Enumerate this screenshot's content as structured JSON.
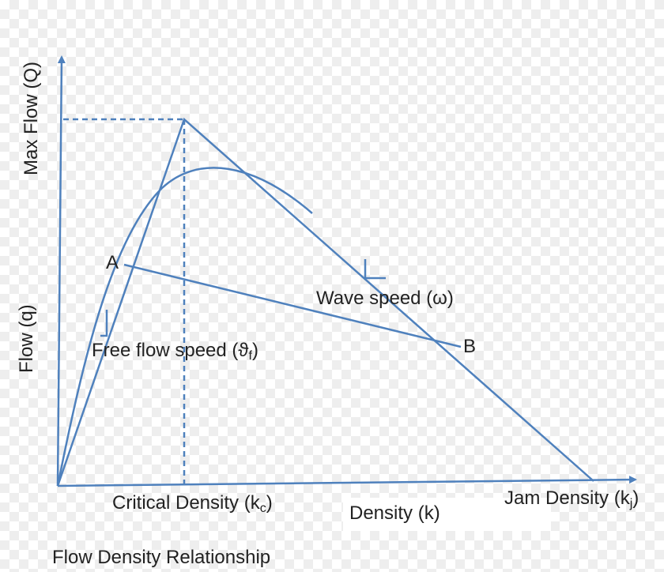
{
  "labels": {
    "y_axis_max": "Max Flow (Q)",
    "y_axis": "Flow (q)",
    "point_a": "A",
    "point_b": "B",
    "wave_speed": "Wave speed (ω)",
    "free_flow_text": "Free flow speed (ϑ",
    "free_flow_sub": "f",
    "free_flow_close": ")",
    "critical_text": "Critical Density (k",
    "critical_sub": "c",
    "critical_close": ")",
    "density": "Density (k)",
    "jam_text": "Jam Density (k",
    "jam_sub": "j",
    "jam_close": ")",
    "caption": "Flow Density Relationship"
  },
  "colors": {
    "line": "#4f81bd",
    "text": "#222222"
  }
}
